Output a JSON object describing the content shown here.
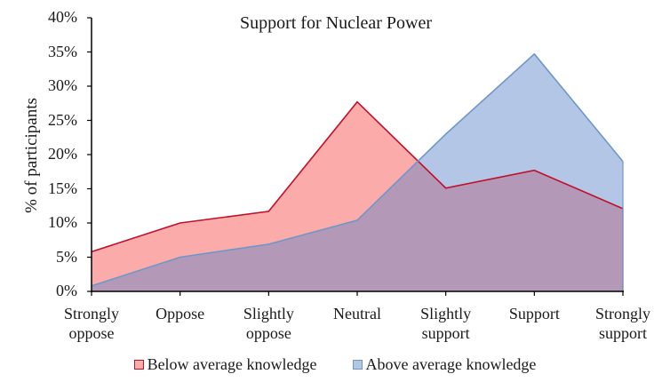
{
  "chart_data": {
    "type": "area",
    "title": "Support for Nuclear Power",
    "xlabel": "",
    "ylabel": "% of participants",
    "ylim": [
      0,
      40
    ],
    "yticks": [
      "0%",
      "5%",
      "10%",
      "15%",
      "20%",
      "25%",
      "30%",
      "35%",
      "40%"
    ],
    "grid": false,
    "legend_position": "bottom",
    "categories": [
      [
        "Strongly",
        "oppose"
      ],
      [
        "Oppose",
        ""
      ],
      [
        "Slightly",
        "oppose"
      ],
      [
        "Neutral",
        ""
      ],
      [
        "Slightly",
        "support"
      ],
      [
        "Support",
        ""
      ],
      [
        "Strongly",
        "support"
      ]
    ],
    "series": [
      {
        "name": "Below average knowledge",
        "values": [
          5.8,
          10.0,
          11.7,
          27.7,
          15.1,
          17.7,
          12.1
        ],
        "fill": "#fcabab",
        "line": "#c0102a"
      },
      {
        "name": "Above average knowledge",
        "values": [
          0.8,
          5.0,
          6.9,
          10.4,
          23.0,
          34.7,
          19.0
        ],
        "fill": "#b3c6e6",
        "line": "#6e97c8"
      }
    ],
    "overlap_color": "#b398b8"
  }
}
